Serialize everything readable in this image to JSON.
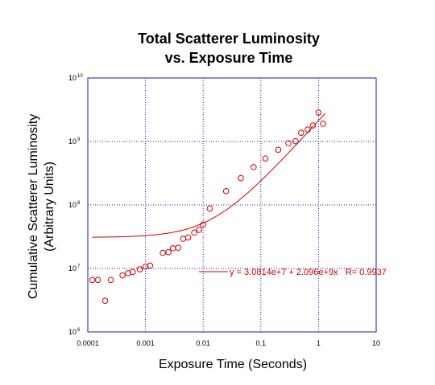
{
  "chart_data": {
    "type": "scatter",
    "title": [
      "Total Scatterer Luminosity",
      "vs. Exposure Time"
    ],
    "xlabel": "Exposure Time (Seconds)",
    "ylabel": [
      "Cumulative Scatterer Luminosity",
      "(Arbitrary Units)"
    ],
    "xscale": "log",
    "yscale": "log",
    "xlim": [
      0.0001,
      10
    ],
    "ylim": [
      1000000,
      10000000000
    ],
    "x_ticks": [
      {
        "value": 0.0001,
        "label": "0.0001"
      },
      {
        "value": 0.001,
        "label": "0.001"
      },
      {
        "value": 0.01,
        "label": "0.01"
      },
      {
        "value": 0.1,
        "label": "0.1"
      },
      {
        "value": 1,
        "label": "1"
      },
      {
        "value": 10,
        "label": "10"
      }
    ],
    "y_ticks": [
      {
        "value": 1000000,
        "base": "10",
        "exp": "6"
      },
      {
        "value": 10000000,
        "base": "10",
        "exp": "7"
      },
      {
        "value": 100000000,
        "base": "10",
        "exp": "8"
      },
      {
        "value": 1000000000,
        "base": "10",
        "exp": "9"
      },
      {
        "value": 10000000000,
        "base": "10",
        "exp": "10"
      }
    ],
    "grid": true,
    "colors": {
      "frame": "#1a1aa6",
      "grid": "#1a1aa6",
      "series": "#cc0000"
    },
    "series": [
      {
        "marker": "open-circle",
        "x": [
          0.00012,
          0.00015,
          0.0002,
          0.00025,
          0.0004,
          0.0005,
          0.0006,
          0.0008,
          0.001,
          0.0012,
          0.002,
          0.0025,
          0.003,
          0.0037,
          0.0045,
          0.0055,
          0.007,
          0.0085,
          0.01,
          0.013,
          0.025,
          0.045,
          0.075,
          0.12,
          0.2,
          0.3,
          0.4,
          0.5,
          0.65,
          0.8,
          1.0,
          1.2
        ],
        "y": [
          6600000,
          6600000,
          3100000,
          6600000,
          7800000,
          8400000,
          8800000,
          9700000,
          10700000,
          11100000,
          17600000,
          18100000,
          20800000,
          21200000,
          29400000,
          30800000,
          36600000,
          40600000,
          49000000,
          88000000,
          165000000,
          265000000,
          395000000,
          540000000,
          740000000,
          940000000,
          1010000000,
          1370000000,
          1540000000,
          1790000000,
          2850000000,
          1900000000
        ]
      }
    ],
    "fit": {
      "intercept": 30814000,
      "slope": 2096000000,
      "label": "y = 3.0814e+7 + 2.096e+9x   R= 0.9937"
    }
  }
}
